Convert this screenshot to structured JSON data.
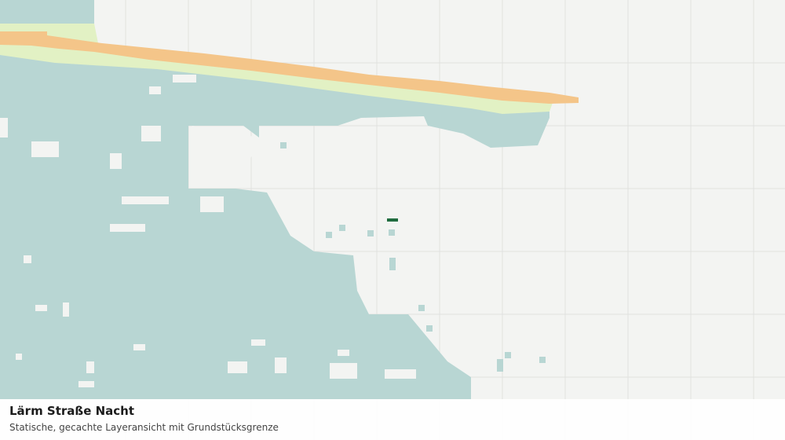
{
  "caption": {
    "title": "Lärm Straße Nacht",
    "subtitle": "Statische, gecachte Layeransicht mit Grundstücksgrenze"
  }
}
